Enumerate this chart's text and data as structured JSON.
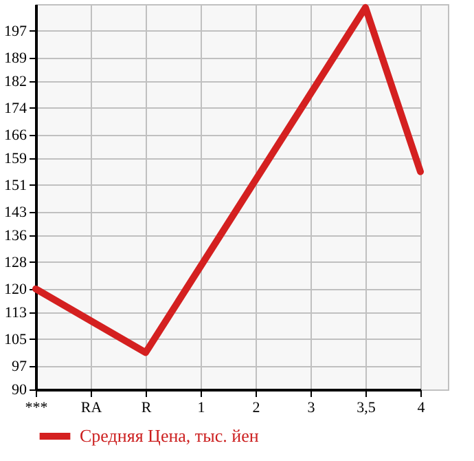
{
  "chart_data": {
    "type": "line",
    "categories": [
      "***",
      "RA",
      "R",
      "1",
      "2",
      "3",
      "3,5",
      "4"
    ],
    "series": [
      {
        "name": "Средняя Цена, тыс. йен",
        "color": "#d42020",
        "values": [
          120,
          null,
          101,
          null,
          null,
          null,
          204,
          155
        ]
      }
    ],
    "ylim": [
      90,
      205
    ],
    "yticks": [
      90,
      97,
      105,
      113,
      120,
      128,
      136,
      143,
      151,
      159,
      166,
      174,
      182,
      189,
      197
    ],
    "grid": true,
    "legend": "bottom",
    "marker": "none",
    "line_style": "solid"
  }
}
